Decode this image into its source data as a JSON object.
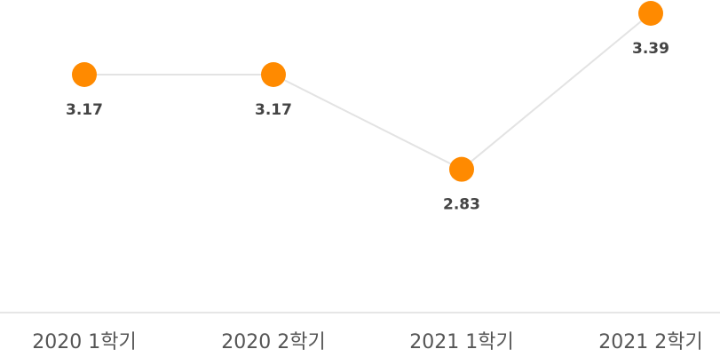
{
  "chart_data": {
    "type": "line",
    "categories": [
      "2020 1학기",
      "2020 2학기",
      "2021 1학기",
      "2021 2학기"
    ],
    "values": [
      3.17,
      3.17,
      2.83,
      3.39
    ],
    "value_labels": [
      "3.17",
      "3.17",
      "2.83",
      "3.39"
    ],
    "title": "",
    "xlabel": "",
    "ylabel": "",
    "grid": false,
    "colors": {
      "marker": "#ff8a00",
      "line": "#e3e3e3",
      "baseline": "#e6e6e6"
    }
  }
}
